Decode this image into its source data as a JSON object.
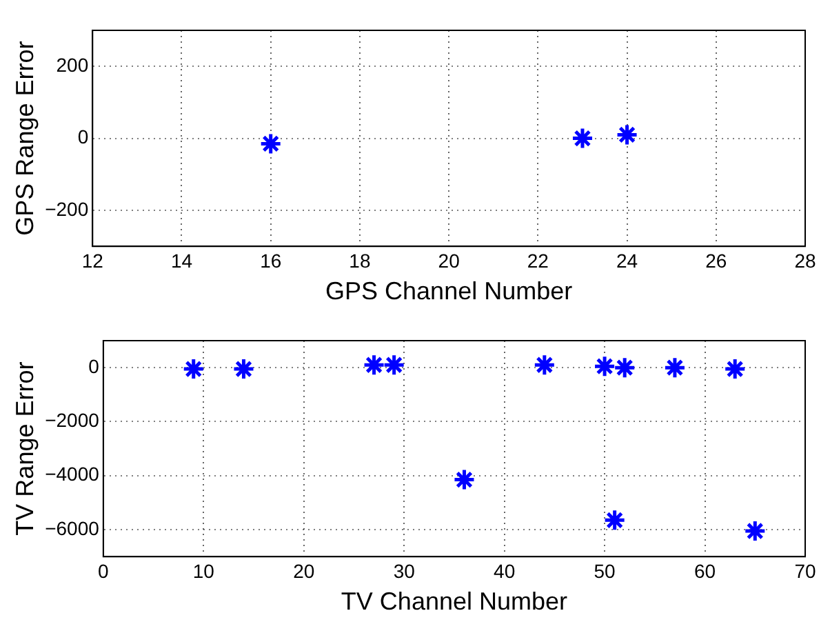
{
  "chart_data": [
    {
      "type": "scatter",
      "xlabel": "GPS Channel Number",
      "ylabel": "GPS Range Error",
      "x": [
        16,
        23,
        24
      ],
      "series": [
        {
          "color": "#0000ff",
          "values": [
            -15,
            0,
            10
          ]
        }
      ],
      "xlim": [
        12,
        28
      ],
      "xticks": [
        12,
        14,
        16,
        18,
        20,
        22,
        24,
        26,
        28
      ],
      "ylim": [
        -300,
        300
      ],
      "yticks": [
        -200,
        0,
        200
      ],
      "grid": true,
      "marker": "cross"
    },
    {
      "type": "scatter",
      "xlabel": "TV Channel Number",
      "ylabel": "TV Range Error",
      "x": [
        9,
        14,
        27,
        29,
        36,
        44,
        50,
        51,
        52,
        57,
        63,
        65
      ],
      "series": [
        {
          "color": "#0000ff",
          "values": [
            -50,
            -50,
            100,
            100,
            -4150,
            100,
            50,
            -5650,
            0,
            0,
            -50,
            -6050
          ]
        }
      ],
      "xlim": [
        0,
        70
      ],
      "xticks": [
        0,
        10,
        20,
        30,
        40,
        50,
        60,
        70
      ],
      "ylim": [
        -7000,
        1000
      ],
      "yticks": [
        -6000,
        -4000,
        -2000,
        0
      ],
      "grid": true,
      "marker": "cross"
    }
  ]
}
